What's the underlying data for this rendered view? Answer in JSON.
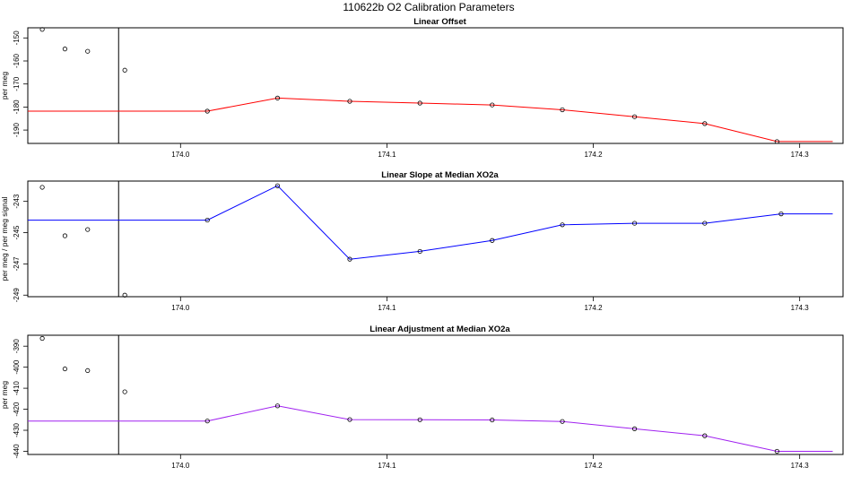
{
  "title": "110622b   O2 Calibration Parameters",
  "chart_data": [
    {
      "type": "line",
      "title": "Linear Offset",
      "ylabel": "per meg",
      "xlim": [
        173.926,
        174.321
      ],
      "ylim": [
        -195.8,
        -145.6
      ],
      "x_ticks": [
        174.0,
        174.1,
        174.2,
        174.3
      ],
      "x_tick_labels": [
        "174.0",
        "174.1",
        "174.2",
        "174.3"
      ],
      "y_ticks": [
        -190,
        -180,
        -170,
        -160,
        -150
      ],
      "y_tick_labels": [
        "-190",
        "-180",
        "-170",
        "-160",
        "-150"
      ],
      "vline_x": 173.97,
      "line_color": "#ff0000",
      "line_start_x": 173.926,
      "line_end_x": 174.316,
      "series": [
        {
          "x": [
            173.933,
            173.944,
            173.955,
            173.973
          ],
          "y": [
            -146.3,
            -154.8,
            -155.8,
            -164.0
          ]
        },
        {
          "x": [
            174.013,
            174.047,
            174.082,
            174.116,
            174.151,
            174.185,
            174.22,
            174.254,
            174.289
          ],
          "y": [
            -181.8,
            -176.1,
            -177.5,
            -178.3,
            -179.1,
            -181.2,
            -184.2,
            -187.2,
            -195.0
          ]
        }
      ]
    },
    {
      "type": "line",
      "title": "Linear Slope at Median XO2a",
      "ylabel": "per meg / per meg signal",
      "xlim": [
        173.926,
        174.321
      ],
      "ylim": [
        -249.1,
        -241.7
      ],
      "x_ticks": [
        174.0,
        174.1,
        174.2,
        174.3
      ],
      "x_tick_labels": [
        "174.0",
        "174.1",
        "174.2",
        "174.3"
      ],
      "y_ticks": [
        -249,
        -247,
        -245,
        -243
      ],
      "y_tick_labels": [
        "-249",
        "-247",
        "-245",
        "-243"
      ],
      "vline_x": 173.97,
      "line_color": "#0000ff",
      "line_start_x": 173.926,
      "line_end_x": 174.316,
      "series": [
        {
          "x": [
            173.933,
            173.944,
            173.955,
            173.973
          ],
          "y": [
            -242.1,
            -245.2,
            -244.8,
            -249.0
          ]
        },
        {
          "x": [
            174.013,
            174.047,
            174.082,
            174.116,
            174.151,
            174.185,
            174.22,
            174.254,
            174.291
          ],
          "y": [
            -244.2,
            -242.0,
            -246.7,
            -246.2,
            -245.5,
            -244.5,
            -244.4,
            -244.4,
            -243.8
          ]
        }
      ]
    },
    {
      "type": "line",
      "title": "Linear Adjustment at Median XO2a",
      "ylabel": "per meg",
      "xlim": [
        173.926,
        174.321
      ],
      "ylim": [
        -441.5,
        -384.8
      ],
      "x_ticks": [
        174.0,
        174.1,
        174.2,
        174.3
      ],
      "x_tick_labels": [
        "174.0",
        "174.1",
        "174.2",
        "174.3"
      ],
      "y_ticks": [
        -440,
        -430,
        -420,
        -410,
        -400,
        -390
      ],
      "y_tick_labels": [
        "-440",
        "-430",
        "-420",
        "-410",
        "-400",
        "-390"
      ],
      "vline_x": 173.97,
      "line_color": "#a020f0",
      "line_start_x": 173.926,
      "line_end_x": 174.316,
      "series": [
        {
          "x": [
            173.933,
            173.944,
            173.955,
            173.973
          ],
          "y": [
            -386.3,
            -400.8,
            -401.6,
            -411.7
          ]
        },
        {
          "x": [
            174.013,
            174.047,
            174.082,
            174.116,
            174.151,
            174.185,
            174.22,
            174.254,
            174.289
          ],
          "y": [
            -425.6,
            -418.4,
            -424.9,
            -425.0,
            -425.1,
            -425.8,
            -429.3,
            -432.6,
            -440.0
          ]
        }
      ]
    }
  ]
}
